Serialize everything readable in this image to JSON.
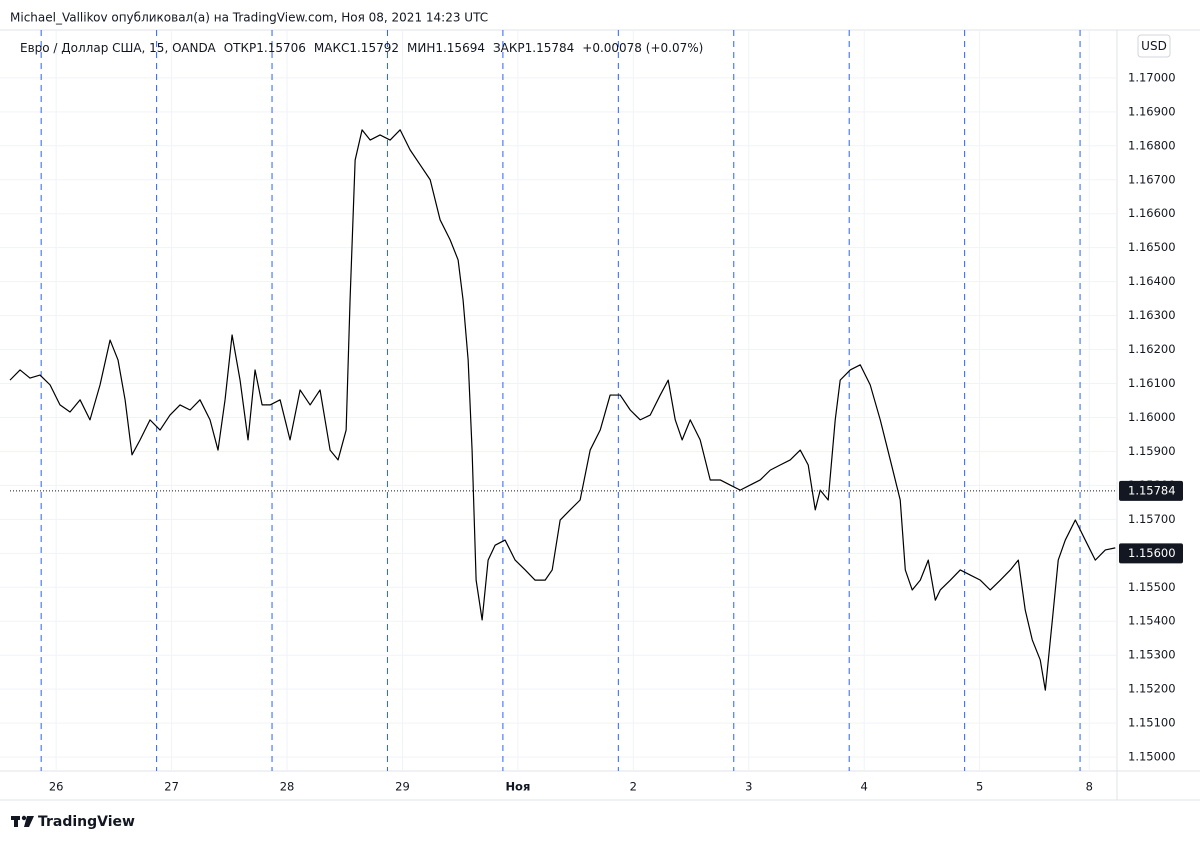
{
  "header": {
    "attribution": "Michael_Vallikov опубликовал(а) на TradingView.com, Ноя 08, 2021 14:23 UTC"
  },
  "footer": {
    "brand": "TradingView"
  },
  "chart_data": {
    "type": "line",
    "legend": {
      "symbol": "Евро / Доллар США, 15, OANDA",
      "items": [
        {
          "label": "ОТКР",
          "value": 1.15706
        },
        {
          "label": "МАКС",
          "value": 1.15792
        },
        {
          "label": "МИН",
          "value": 1.15694
        },
        {
          "label": "ЗАКР",
          "value": 1.15784
        }
      ],
      "change": "+0.00078 (+0.07%)"
    },
    "currency": "USD",
    "color": "#000000",
    "x": [
      0,
      0.087,
      0.173,
      0.26,
      0.347,
      0.433,
      0.52,
      0.607,
      0.693,
      0.78,
      0.867,
      0.936,
      0.997,
      1.057,
      1.127,
      1.213,
      1.3,
      1.386,
      1.473,
      1.56,
      1.646,
      1.733,
      1.802,
      1.863,
      1.924,
      1.993,
      2.062,
      2.123,
      2.184,
      2.253,
      2.34,
      2.426,
      2.513,
      2.6,
      2.686,
      2.773,
      2.842,
      2.912,
      2.946,
      2.99,
      3.05,
      3.12,
      3.206,
      3.293,
      3.38,
      3.466,
      3.553,
      3.64,
      3.726,
      3.813,
      3.882,
      3.925,
      3.969,
      4.003,
      4.038,
      4.09,
      4.142,
      4.203,
      4.289,
      4.376,
      4.463,
      4.549,
      4.636,
      4.697,
      4.766,
      4.853,
      4.939,
      5.026,
      5.113,
      5.199,
      5.286,
      5.373,
      5.459,
      5.546,
      5.633,
      5.702,
      5.763,
      5.823,
      5.893,
      5.979,
      6.066,
      6.153,
      6.239,
      6.326,
      6.412,
      6.499,
      6.586,
      6.672,
      6.759,
      6.846,
      6.915,
      6.976,
      7.019,
      7.088,
      7.149,
      7.192,
      7.279,
      7.366,
      7.452,
      7.539,
      7.626,
      7.712,
      7.756,
      7.816,
      7.886,
      7.955,
      8.016,
      8.059,
      8.146,
      8.232,
      8.319,
      8.406,
      8.492,
      8.579,
      8.666,
      8.735,
      8.795,
      8.856,
      8.925,
      8.969,
      9.03,
      9.081,
      9.142,
      9.229,
      9.315,
      9.402,
      9.489,
      9.575
    ],
    "values": [
      1.1611,
      1.1614,
      1.16116,
      1.16125,
      1.16096,
      1.16037,
      1.16016,
      1.16052,
      1.15993,
      1.16096,
      1.16228,
      1.16169,
      1.16052,
      1.1589,
      1.15934,
      1.15993,
      1.15963,
      1.16007,
      1.16037,
      1.16022,
      1.16052,
      1.15993,
      1.15904,
      1.16052,
      1.16243,
      1.1611,
      1.15934,
      1.1614,
      1.16037,
      1.16037,
      1.16052,
      1.15934,
      1.16081,
      1.16037,
      1.16081,
      1.15904,
      1.15875,
      1.15963,
      1.16346,
      1.16758,
      1.16847,
      1.16817,
      1.16832,
      1.16817,
      1.16847,
      1.16788,
      1.16744,
      1.167,
      1.16582,
      1.16523,
      1.16464,
      1.16346,
      1.16169,
      1.15904,
      1.15521,
      1.15404,
      1.1558,
      1.15624,
      1.15639,
      1.1558,
      1.15551,
      1.15521,
      1.15521,
      1.15551,
      1.15698,
      1.15728,
      1.15757,
      1.15904,
      1.15963,
      1.16066,
      1.16066,
      1.16022,
      1.15993,
      1.16007,
      1.16066,
      1.1611,
      1.15993,
      1.15934,
      1.15993,
      1.15934,
      1.15816,
      1.15816,
      1.15801,
      1.15786,
      1.15801,
      1.15816,
      1.15845,
      1.1586,
      1.15875,
      1.15904,
      1.1586,
      1.15728,
      1.15786,
      1.15757,
      1.15993,
      1.1611,
      1.1614,
      1.16155,
      1.16096,
      1.15993,
      1.15875,
      1.15757,
      1.15551,
      1.15492,
      1.15521,
      1.1558,
      1.15462,
      1.15492,
      1.15521,
      1.15551,
      1.15536,
      1.15521,
      1.15492,
      1.15521,
      1.15551,
      1.1558,
      1.15433,
      1.15345,
      1.15286,
      1.15197,
      1.15404,
      1.1558,
      1.15639,
      1.15698,
      1.15639,
      1.1558,
      1.1561,
      1.15616
    ],
    "xlim": [
      0,
      9.59
    ],
    "xticks": [
      {
        "value": 0.4,
        "label": "26"
      },
      {
        "value": 1.4,
        "label": "27"
      },
      {
        "value": 2.4,
        "label": "28"
      },
      {
        "value": 3.4,
        "label": "29"
      },
      {
        "value": 4.4,
        "label": "Ноя"
      },
      {
        "value": 5.4,
        "label": "2"
      },
      {
        "value": 6.4,
        "label": "3"
      },
      {
        "value": 7.4,
        "label": "4"
      },
      {
        "value": 8.4,
        "label": "5"
      },
      {
        "value": 9.35,
        "label": "8"
      }
    ],
    "session_lines": [
      0.27,
      1.27,
      2.27,
      3.27,
      4.27,
      5.27,
      6.27,
      7.27,
      8.27,
      9.27
    ],
    "ylim": [
      1.14959,
      1.17141
    ],
    "yticks": [
      {
        "value": 1.15,
        "label": "1.15000"
      },
      {
        "value": 1.151,
        "label": "1.15100"
      },
      {
        "value": 1.152,
        "label": "1.15200"
      },
      {
        "value": 1.153,
        "label": "1.15300"
      },
      {
        "value": 1.154,
        "label": "1.15400"
      },
      {
        "value": 1.155,
        "label": "1.15500"
      },
      {
        "value": 1.156,
        "label": "1.15600"
      },
      {
        "value": 1.157,
        "label": "1.15700"
      },
      {
        "value": 1.158,
        "label": "1.15800"
      },
      {
        "value": 1.159,
        "label": "1.15900"
      },
      {
        "value": 1.16,
        "label": "1.16000"
      },
      {
        "value": 1.161,
        "label": "1.16100"
      },
      {
        "value": 1.162,
        "label": "1.16200"
      },
      {
        "value": 1.163,
        "label": "1.16300"
      },
      {
        "value": 1.164,
        "label": "1.16400"
      },
      {
        "value": 1.165,
        "label": "1.16500"
      },
      {
        "value": 1.166,
        "label": "1.16600"
      },
      {
        "value": 1.167,
        "label": "1.16700"
      },
      {
        "value": 1.168,
        "label": "1.16800"
      },
      {
        "value": 1.169,
        "label": "1.16900"
      },
      {
        "value": 1.17,
        "label": "1.17000"
      }
    ],
    "price_labels": [
      {
        "value": 1.15784,
        "label": "1.15784",
        "dotted": true
      },
      {
        "value": 1.156,
        "label": "1.15600",
        "dotted": false
      }
    ],
    "grid": true
  }
}
